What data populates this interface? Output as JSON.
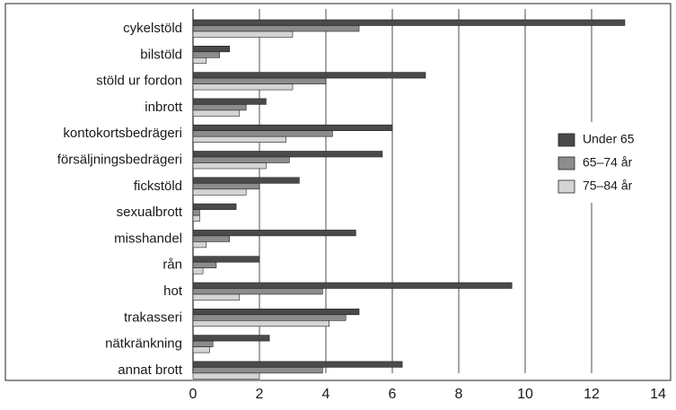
{
  "chart_data": {
    "type": "bar",
    "orientation": "horizontal",
    "title": "",
    "xlabel": "",
    "ylabel": "",
    "xlim": [
      0,
      14
    ],
    "x_ticks": [
      0,
      2,
      4,
      6,
      8,
      10,
      12,
      14
    ],
    "grid": "vertical",
    "legend_position": "right",
    "categories": [
      "cykelstöld",
      "bilstöld",
      "stöld ur fordon",
      "inbrott",
      "kontokortsbedrägeri",
      "försäljningsbedrägeri",
      "fickstöld",
      "sexualbrott",
      "misshandel",
      "rån",
      "hot",
      "trakasseri",
      "nätkränkning",
      "annat brott"
    ],
    "series": [
      {
        "name": "Under 65",
        "color": "#4a4a4a",
        "values": [
          13.0,
          1.1,
          7.0,
          2.2,
          6.0,
          5.7,
          3.2,
          1.3,
          4.9,
          2.0,
          9.6,
          5.0,
          2.3,
          6.3
        ]
      },
      {
        "name": "65–74 år",
        "color": "#8c8c8c",
        "values": [
          5.0,
          0.8,
          4.0,
          1.6,
          4.2,
          2.9,
          2.0,
          0.2,
          1.1,
          0.7,
          3.9,
          4.6,
          0.6,
          3.9
        ]
      },
      {
        "name": "75–84 år",
        "color": "#d4d4d4",
        "values": [
          3.0,
          0.4,
          3.0,
          1.4,
          2.8,
          2.2,
          1.6,
          0.2,
          0.4,
          0.3,
          1.4,
          4.1,
          0.5,
          2.0
        ]
      }
    ]
  }
}
